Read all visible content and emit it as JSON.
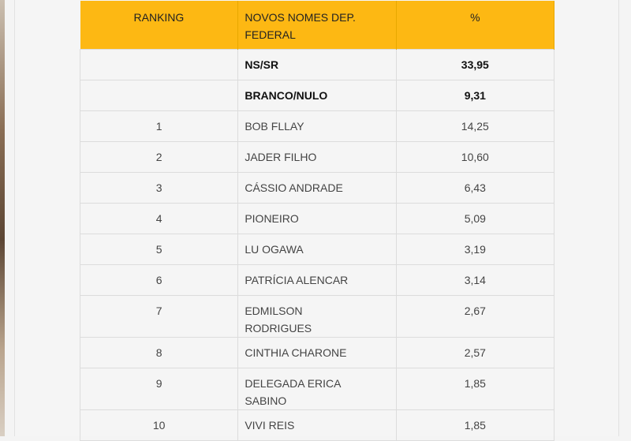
{
  "table": {
    "headers": [
      "RANKING",
      "NOVOS NOMES DEP. FEDERAL",
      "%"
    ],
    "rows": [
      {
        "rank": "",
        "name": "NS/SR",
        "pct": "33,95",
        "bold": true
      },
      {
        "rank": "",
        "name": "BRANCO/NULO",
        "pct": "9,31",
        "bold": true
      },
      {
        "rank": "1",
        "name": "BOB FLLAY",
        "pct": "14,25"
      },
      {
        "rank": "2",
        "name": "JADER FILHO",
        "pct": "10,60"
      },
      {
        "rank": "3",
        "name": "CÁSSIO ANDRADE",
        "pct": "6,43"
      },
      {
        "rank": "4",
        "name": "PIONEIRO",
        "pct": "5,09"
      },
      {
        "rank": "5",
        "name": "LU OGAWA",
        "pct": "3,19"
      },
      {
        "rank": "6",
        "name": "PATRÍCIA ALENCAR",
        "pct": "3,14"
      },
      {
        "rank": "7",
        "name": "EDMILSON RODRIGUES",
        "pct": "2,67"
      },
      {
        "rank": "8",
        "name": "CINTHIA CHARONE",
        "pct": "2,57"
      },
      {
        "rank": "9",
        "name": "DELEGADA ERICA SABINO",
        "pct": "1,85"
      },
      {
        "rank": "10",
        "name": "VIVI REIS",
        "pct": "1,85"
      }
    ]
  },
  "colors": {
    "header_bg": "#FDB813"
  }
}
